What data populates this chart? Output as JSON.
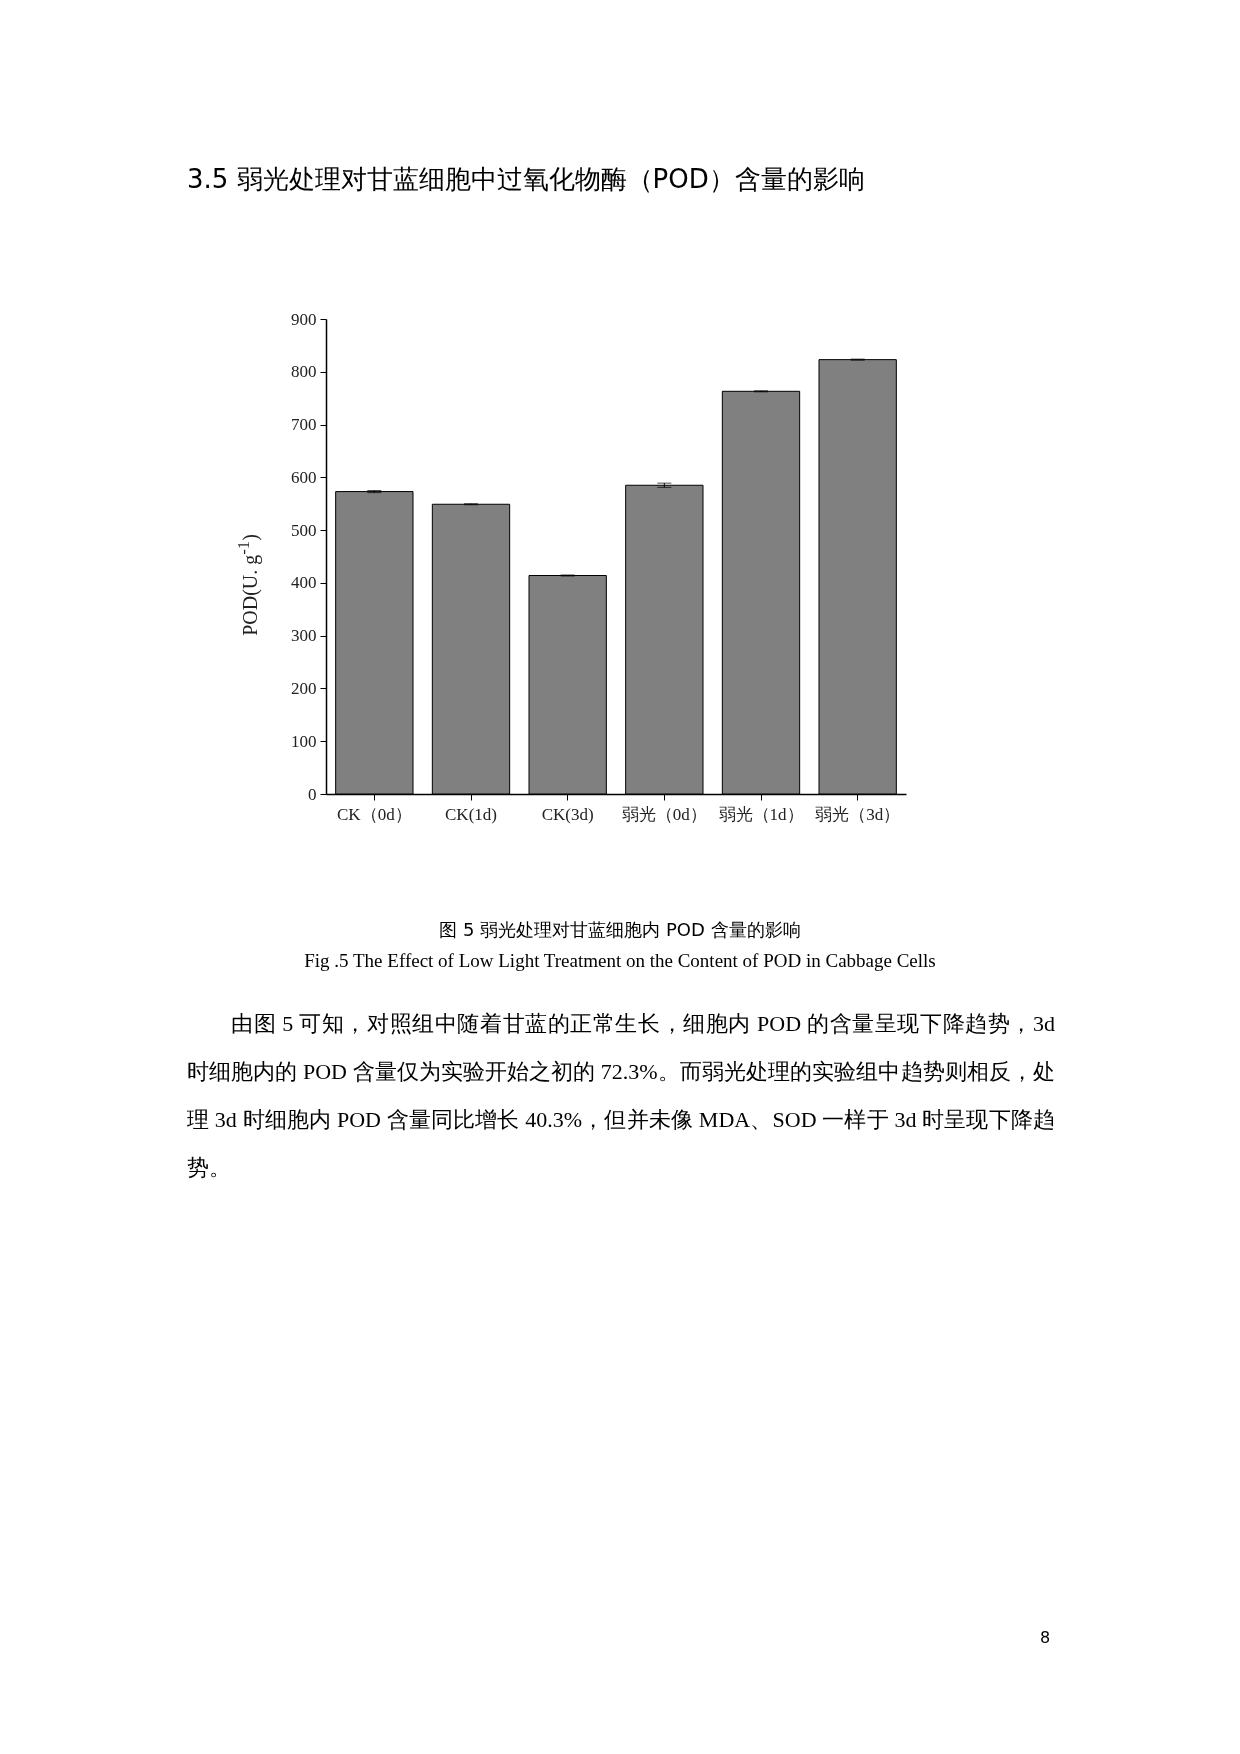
{
  "chart_data": {
    "type": "bar",
    "title": "3.5 弱光处理对甘蓝细胞中过氧化物酶（POD）含量的影响",
    "ylabel": "POD(U. g$^{-1}$)",
    "categories": [
      "CK（0d）",
      "CK(1d)",
      "CK(3d)",
      "弱光（0d）",
      "弱光（1d）",
      "弱光（3d）"
    ],
    "values": [
      573,
      549,
      414,
      585,
      763,
      823
    ],
    "errors": [
      2,
      1,
      1,
      4,
      1,
      1
    ],
    "color": "#808080",
    "ylim": [
      0,
      900
    ],
    "yticks": [
      0,
      100,
      200,
      300,
      400,
      500,
      600,
      700,
      800,
      900
    ],
    "grid": false,
    "annotations": [
      "图 5  弱光处理对甘蓝细胞内 POD 含量的影响",
      "Fig .5 The Effect of Low Light Treatment on the Content of POD in Cabbage Cells",
      "由图 5 可知，对照组中随着甘蓝的正常生长，细胞内 POD 的含量呈现下降趋势，3d 时细胞内的 POD 含量仅为实验开始之初的 72.3%。而弱光处理的实验组中趋势则相反，处理 3d 时细胞内 POD 含量同比增长 40.3%，但并未像 MDA、SOD 一样于 3d 时呈现下降趋势。",
      "8"
    ]
  }
}
